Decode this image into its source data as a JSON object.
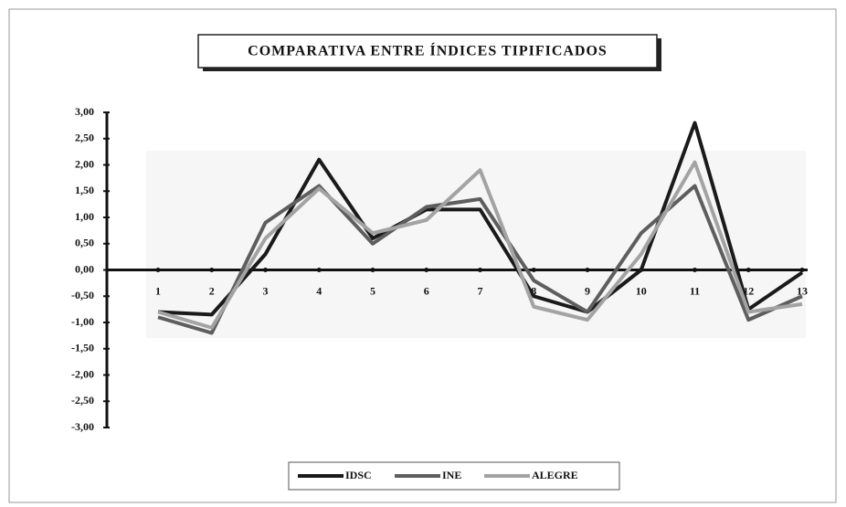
{
  "chart_data": {
    "type": "line",
    "title": "COMPARATIVA ENTRE ÍNDICES TIPIFICADOS",
    "categories": [
      "1",
      "2",
      "3",
      "4",
      "5",
      "6",
      "7",
      "8",
      "9",
      "10",
      "11",
      "12",
      "13"
    ],
    "series": [
      {
        "name": "IDSC",
        "color": "#1a1a1a",
        "values": [
          -0.8,
          -0.85,
          0.3,
          2.1,
          0.6,
          1.15,
          1.15,
          -0.5,
          -0.8,
          0.0,
          2.8,
          -0.75,
          -0.05
        ]
      },
      {
        "name": "INE",
        "color": "#5e5e5e",
        "values": [
          -0.9,
          -1.2,
          0.9,
          1.6,
          0.5,
          1.2,
          1.35,
          -0.2,
          -0.8,
          0.7,
          1.6,
          -0.95,
          -0.5
        ]
      },
      {
        "name": "ALEGRE",
        "color": "#a3a3a3",
        "values": [
          -0.8,
          -1.1,
          0.6,
          1.55,
          0.7,
          0.95,
          1.9,
          -0.7,
          -0.95,
          0.3,
          2.05,
          -0.8,
          -0.65
        ]
      }
    ],
    "ylim": [
      -3,
      3
    ],
    "yticks": [
      {
        "value": 3,
        "label": "3,00"
      },
      {
        "value": 2.5,
        "label": "2,50"
      },
      {
        "value": 2,
        "label": "2,00"
      },
      {
        "value": 1.5,
        "label": "1,50"
      },
      {
        "value": 1,
        "label": "1,00"
      },
      {
        "value": 0.5,
        "label": "0,50"
      },
      {
        "value": 0,
        "label": "0,00"
      },
      {
        "value": -0.5,
        "label": "-0,50"
      },
      {
        "value": -1,
        "label": "-1,00"
      },
      {
        "value": -1.5,
        "label": "-1,50"
      },
      {
        "value": -2,
        "label": "-2,00"
      },
      {
        "value": -2.5,
        "label": "-2,50"
      },
      {
        "value": -3,
        "label": "-3,00"
      }
    ],
    "legend": "bottom"
  }
}
